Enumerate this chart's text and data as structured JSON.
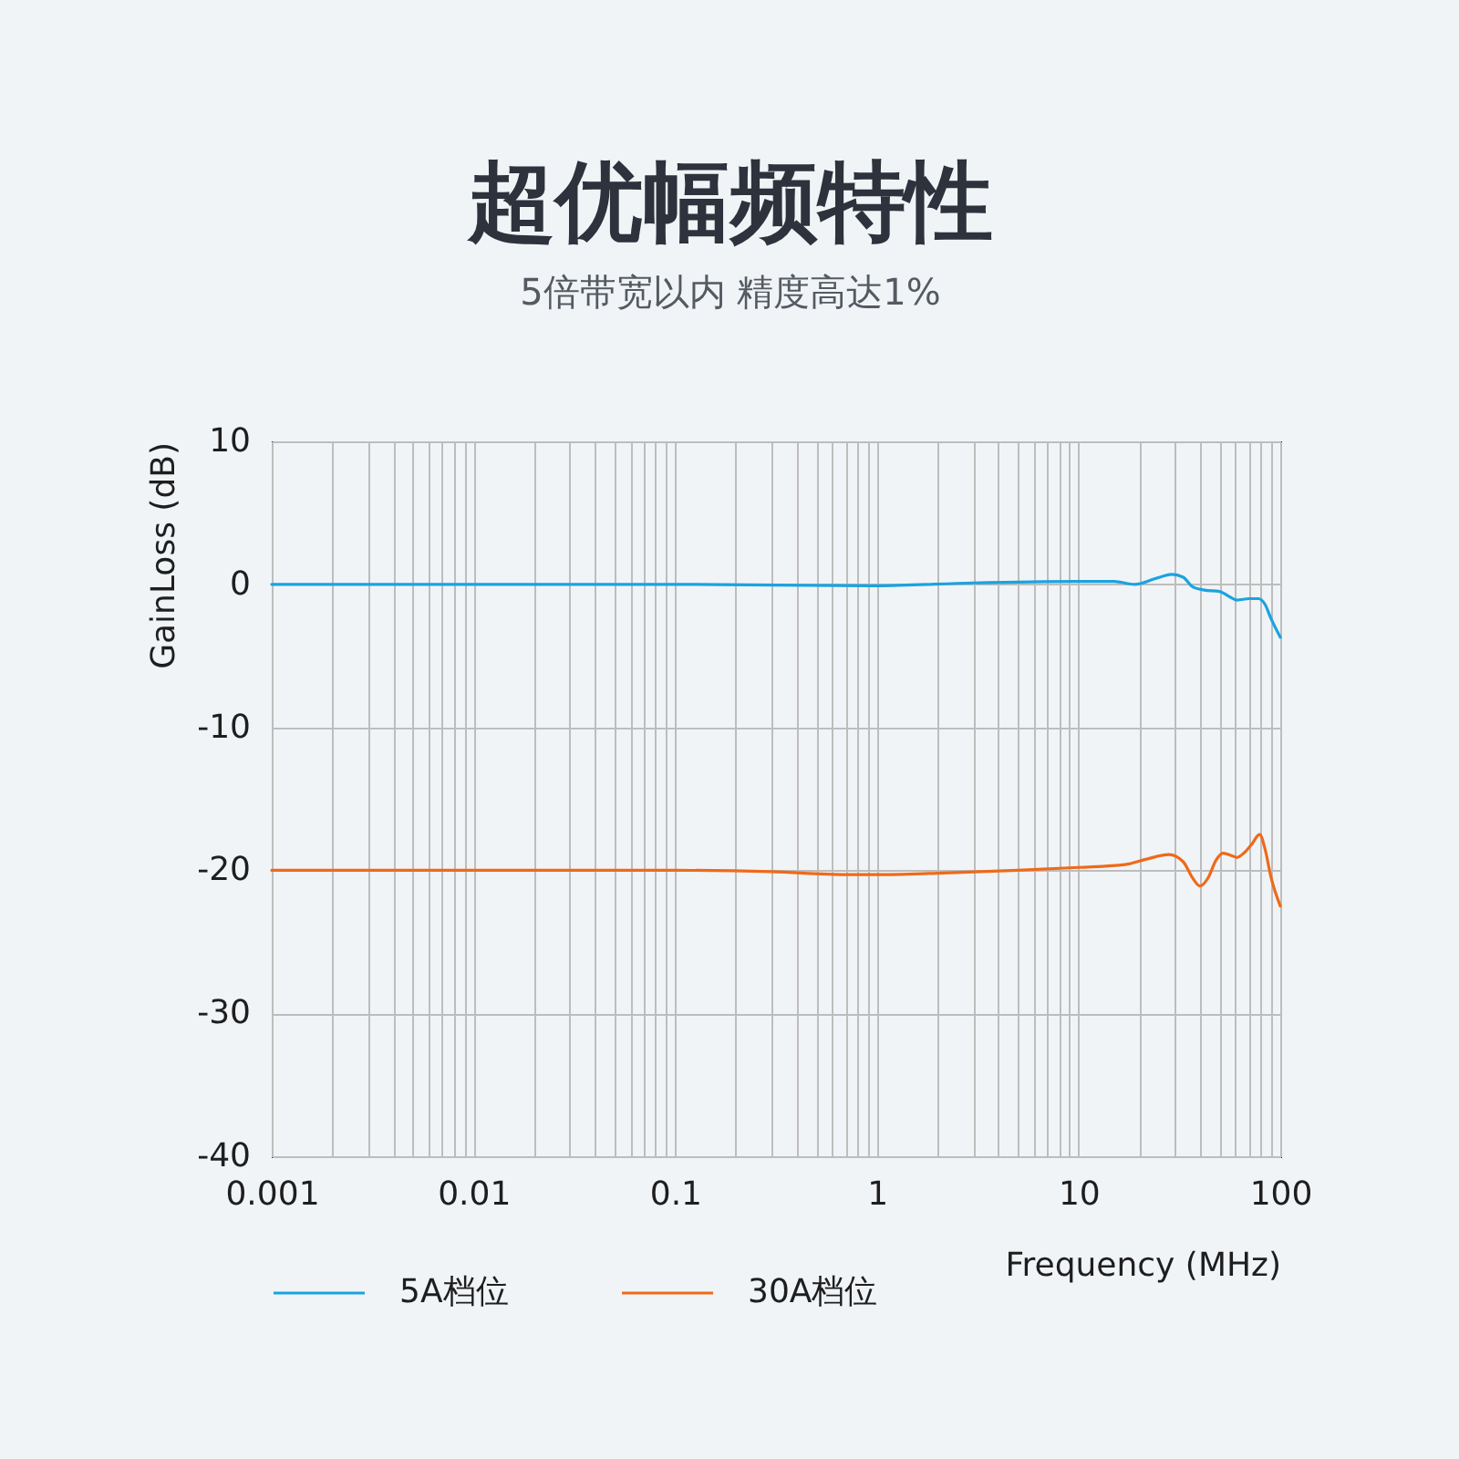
{
  "chart_data": {
    "type": "line",
    "title": "超优幅频特性",
    "subtitle": "5倍带宽以内 精度高达1%",
    "xlabel": "Frequency (MHz)",
    "ylabel": "GainLoss (dB)",
    "log": "x",
    "xlim": [
      0.001,
      100
    ],
    "ylim": [
      -40,
      10
    ],
    "xticks": [
      0.001,
      {
        "value": 0.002,
        "label": null
      },
      {
        "value": 0.003,
        "label": null
      },
      {
        "value": 0.004,
        "label": null
      },
      {
        "value": 0.005,
        "label": null
      },
      {
        "value": 0.006,
        "label": null
      },
      {
        "value": 0.007,
        "label": null
      },
      {
        "value": 0.008,
        "label": null
      },
      {
        "value": 0.009,
        "label": null
      },
      0.01,
      {
        "value": 0.02,
        "label": null
      },
      {
        "value": 0.03,
        "label": null
      },
      {
        "value": 0.04,
        "label": null
      },
      {
        "value": 0.05,
        "label": null
      },
      {
        "value": 0.06,
        "label": null
      },
      {
        "value": 0.07,
        "label": null
      },
      {
        "value": 0.08,
        "label": null
      },
      {
        "value": 0.09,
        "label": null
      },
      0.1,
      {
        "value": 0.2,
        "label": null
      },
      {
        "value": 0.3,
        "label": null
      },
      {
        "value": 0.4,
        "label": null
      },
      {
        "value": 0.5,
        "label": null
      },
      {
        "value": 0.6,
        "label": null
      },
      {
        "value": 0.7,
        "label": null
      },
      {
        "value": 0.8,
        "label": null
      },
      {
        "value": 0.9,
        "label": null
      },
      1,
      {
        "value": 2,
        "label": null
      },
      {
        "value": 3,
        "label": null
      },
      {
        "value": 4,
        "label": null
      },
      {
        "value": 5,
        "label": null
      },
      {
        "value": 6,
        "label": null
      },
      {
        "value": 7,
        "label": null
      },
      {
        "value": 8,
        "label": null
      },
      {
        "value": 9,
        "label": null
      },
      10,
      {
        "value": 20,
        "label": null
      },
      {
        "value": 30,
        "label": null
      },
      {
        "value": 40,
        "label": null
      },
      {
        "value": 50,
        "label": null
      },
      {
        "value": 60,
        "label": null
      },
      {
        "value": 70,
        "label": null
      },
      {
        "value": 80,
        "label": null
      },
      {
        "value": 90,
        "label": null
      },
      100
    ],
    "yticks": [
      -40,
      -30,
      -20,
      -10,
      0,
      10
    ],
    "grid": true,
    "legend": "bottom",
    "series": [
      {
        "name": "5A档位",
        "color": "#1aa3e0",
        "x": [
          0.001,
          0.01,
          0.1,
          1,
          3,
          10,
          15,
          19,
          24,
          29,
          33,
          37,
          42,
          50,
          55,
          61,
          70,
          78,
          84,
          90,
          100
        ],
        "values": [
          0,
          0,
          0,
          -0.1,
          0.1,
          0.2,
          0.2,
          0,
          0.4,
          0.7,
          0.5,
          -0.2,
          -0.4,
          -0.5,
          -0.8,
          -1.1,
          -1,
          -1,
          -1.4,
          -2.4,
          -3.7
        ]
      },
      {
        "name": "30A档位",
        "color": "#ee6a1a",
        "x": [
          0.001,
          0.01,
          0.1,
          0.3,
          0.7,
          1,
          2,
          5,
          10,
          17,
          22,
          28,
          33,
          37,
          40,
          44,
          48,
          52,
          58,
          61,
          66,
          72,
          79,
          84,
          90,
          100
        ],
        "values": [
          -20,
          -20,
          -20,
          -20.1,
          -20.3,
          -20.3,
          -20.2,
          -20,
          -19.8,
          -19.6,
          -19.2,
          -18.9,
          -19.4,
          -20.6,
          -21.1,
          -20.5,
          -19.3,
          -18.8,
          -19,
          -19.1,
          -18.8,
          -18.2,
          -17.5,
          -18.5,
          -20.5,
          -22.5
        ]
      }
    ]
  }
}
